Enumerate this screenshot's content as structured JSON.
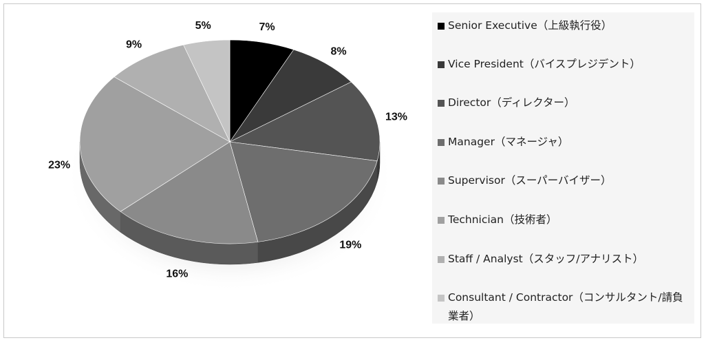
{
  "chart_data": {
    "type": "pie",
    "style": "3d",
    "legend_position": "right",
    "labels": [
      "Senior Executive（上級執行役）",
      "Vice President（バイスプレジデント）",
      "Director（ディレクター）",
      "Manager（マネージャ）",
      "Supervisor（スーパーバイザー）",
      "Technician（技術者）",
      "Staff / Analyst（スタッフ/アナリスト）",
      "Consultant / Contractor（コンサルタント/請負業者）"
    ],
    "values": [
      7,
      8,
      13,
      19,
      16,
      23,
      9,
      5
    ],
    "value_labels": [
      "7%",
      "8%",
      "13%",
      "19%",
      "16%",
      "23%",
      "9%",
      "5%"
    ],
    "colors": [
      "#000000",
      "#3a3a3a",
      "#545454",
      "#6e6e6e",
      "#8a8a8a",
      "#a0a0a0",
      "#b0b0b0",
      "#c4c4c4"
    ]
  }
}
